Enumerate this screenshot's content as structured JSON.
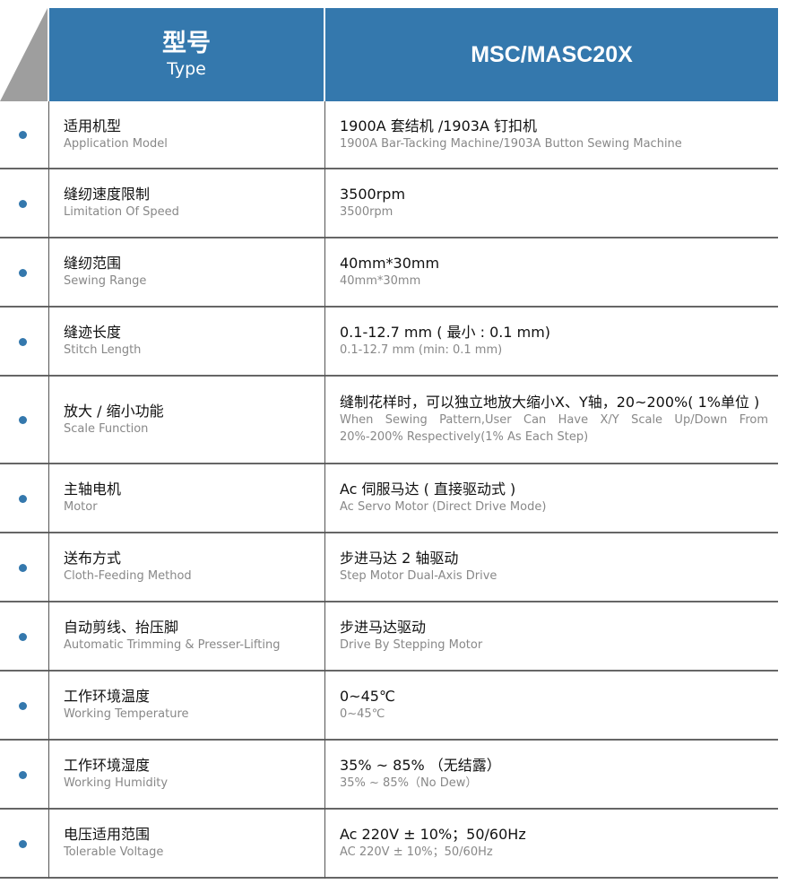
{
  "header": {
    "label_cn": "型号",
    "label_en": "Type",
    "model": "MSC/MASC20X"
  },
  "colors": {
    "header": "#3478ad",
    "bullet": "#3478ad",
    "corner": "#9e9e9e"
  },
  "rows": [
    {
      "cn": "适用机型",
      "en": "Application Model",
      "val_cn": "1900A 套结机 /1903A 钉扣机",
      "val_en": "1900A Bar-Tacking Machine/1903A Button Sewing Machine"
    },
    {
      "cn": "缝纫速度限制",
      "en": "Limitation Of Speed",
      "val_cn": "3500rpm",
      "val_en": "3500rpm"
    },
    {
      "cn": "缝纫范围",
      "en": "Sewing Range",
      "val_cn": "40mm*30mm",
      "val_en": "40mm*30mm"
    },
    {
      "cn": "缝迹长度",
      "en": "Stitch Length",
      "val_cn": "0.1-12.7 mm ( 最小 : 0.1 mm)",
      "val_en": "0.1-12.7 mm (min: 0.1 mm)"
    },
    {
      "cn": "放大 / 缩小功能",
      "en": "Scale Function",
      "val_cn": "缝制花样时，可以独立地放大缩小X、Y轴，20~200%( 1%单位 )",
      "val_en": "When Sewing Pattern,User Can Have X/Y Scale Up/Down From 20%-200% Respectively(1% As Each Step)"
    },
    {
      "cn": "主轴电机",
      "en": "Motor",
      "val_cn": "Ac 伺服马达 ( 直接驱动式 )",
      "val_en": "Ac Servo Motor (Direct Drive Mode)"
    },
    {
      "cn": "送布方式",
      "en": "Cloth-Feeding Method",
      "val_cn": "步进马达 2 轴驱动",
      "val_en": "Step Motor Dual-Axis Drive"
    },
    {
      "cn": "自动剪线、抬压脚",
      "en": "Automatic Trimming & Presser-Lifting",
      "val_cn": "步进马达驱动",
      "val_en": "Drive By Stepping Motor"
    },
    {
      "cn": "工作环境温度",
      "en": "Working Temperature",
      "val_cn": "0~45℃",
      "val_en": "0~45℃"
    },
    {
      "cn": "工作环境湿度",
      "en": "Working Humidity",
      "val_cn": "35% ~ 85% （无结露）",
      "val_en": "35% ~ 85%（No Dew）"
    },
    {
      "cn": "电压适用范围",
      "en": "Tolerable Voltage",
      "val_cn": "Ac 220V ± 10%；50/60Hz",
      "val_en": "AC 220V ± 10%；50/60Hz"
    }
  ]
}
